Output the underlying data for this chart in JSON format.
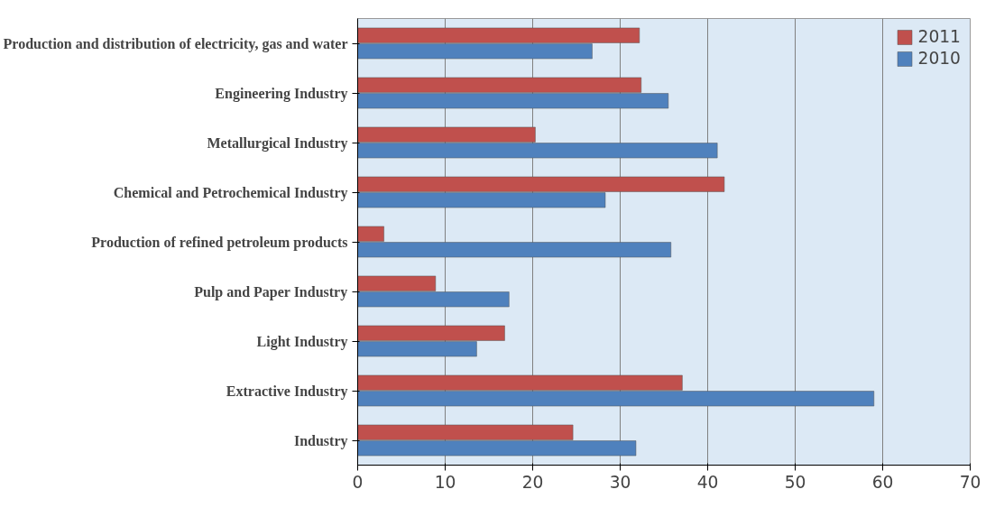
{
  "chart_data": {
    "type": "bar",
    "orientation": "horizontal",
    "categories": [
      "Production and distribution of electricity, gas and water",
      "Engineering Industry",
      "Metallurgical Industry",
      "Chemical and Petrochemical Industry",
      "Production of refined petroleum products",
      "Pulp and Paper Industry",
      "Light Industry",
      "Extractive Industry",
      "Industry"
    ],
    "series": [
      {
        "name": "2011",
        "color": "#c0504d",
        "values": [
          32.2,
          32.4,
          20.3,
          41.9,
          3.0,
          8.9,
          16.8,
          37.1,
          24.6
        ]
      },
      {
        "name": "2010",
        "color": "#4f81bd",
        "values": [
          26.8,
          35.5,
          41.1,
          28.3,
          35.8,
          17.3,
          13.6,
          59.0,
          31.8
        ]
      }
    ],
    "xlim": [
      0,
      70
    ],
    "xticks": [
      0,
      10,
      20,
      30,
      40,
      50,
      60,
      70
    ],
    "grid": "x",
    "legend": "top right"
  }
}
